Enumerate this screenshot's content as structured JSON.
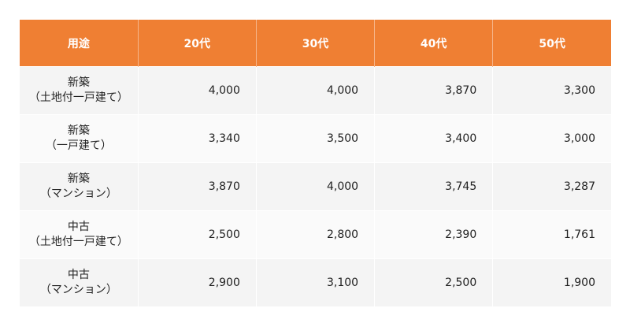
{
  "table": {
    "headers": [
      "用途",
      "20代",
      "30代",
      "40代",
      "50代"
    ],
    "rows": [
      {
        "label_line1": "新築",
        "label_line2": "（土地付一戸建て）",
        "values": [
          "4,000",
          "4,000",
          "3,870",
          "3,300"
        ]
      },
      {
        "label_line1": "新築",
        "label_line2": "（一戸建て）",
        "values": [
          "3,340",
          "3,500",
          "3,400",
          "3,000"
        ]
      },
      {
        "label_line1": "新築",
        "label_line2": "（マンション）",
        "values": [
          "3,870",
          "4,000",
          "3,745",
          "3,287"
        ]
      },
      {
        "label_line1": "中古",
        "label_line2": "（土地付一戸建て）",
        "values": [
          "2,500",
          "2,800",
          "2,390",
          "1,761"
        ]
      },
      {
        "label_line1": "中古",
        "label_line2": "（マンション）",
        "values": [
          "2,900",
          "3,100",
          "2,500",
          "1,900"
        ]
      }
    ]
  },
  "colors": {
    "header_bg": "#ef7f33",
    "header_text": "#ffffff",
    "row_odd_bg": "#f4f4f4",
    "row_even_bg": "#fafafa"
  }
}
